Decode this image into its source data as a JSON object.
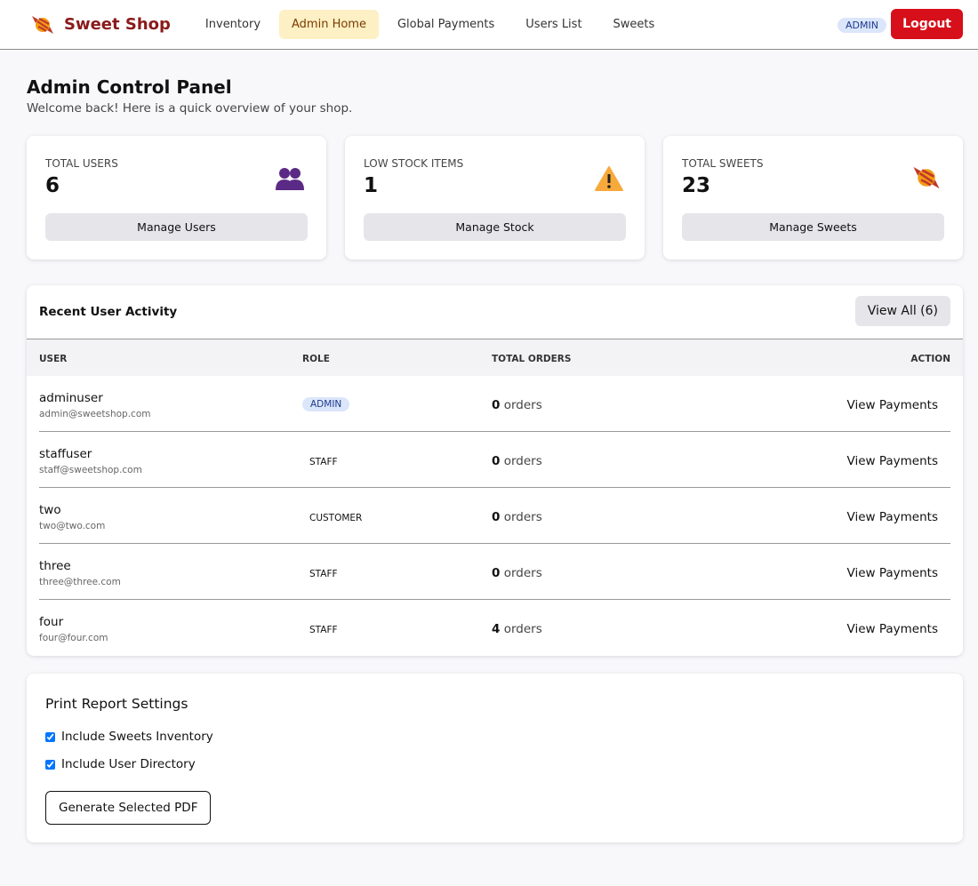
{
  "nav": {
    "brand": "Sweet Shop",
    "links": [
      "Inventory",
      "Admin Home",
      "Global Payments",
      "Users List",
      "Sweets"
    ],
    "role_badge": "ADMIN",
    "logout": "Logout"
  },
  "header": {
    "title": "Admin Control Panel",
    "subtitle": "Welcome back! Here is a quick overview of your shop."
  },
  "stats": [
    {
      "label": "TOTAL USERS",
      "value": 6,
      "button": "Manage Users"
    },
    {
      "label": "LOW STOCK ITEMS",
      "value": 1,
      "button": "Manage Stock"
    },
    {
      "label": "TOTAL SWEETS",
      "value": 23,
      "button": "Manage Sweets"
    }
  ],
  "activity": {
    "title": "Recent User Activity",
    "view_all": "View All (6)",
    "columns": [
      "USER",
      "ROLE",
      "TOTAL ORDERS",
      "ACTION"
    ],
    "orders_unit": "orders",
    "action_label": "View Payments",
    "rows": [
      {
        "name": "adminuser",
        "email": "admin@sweetshop.com",
        "role": "ADMIN",
        "orders": 0
      },
      {
        "name": "staffuser",
        "email": "staff@sweetshop.com",
        "role": "STAFF",
        "orders": 0
      },
      {
        "name": "two",
        "email": "two@two.com",
        "role": "CUSTOMER",
        "orders": 0
      },
      {
        "name": "three",
        "email": "three@three.com",
        "role": "STAFF",
        "orders": 0
      },
      {
        "name": "four",
        "email": "four@four.com",
        "role": "STAFF",
        "orders": 4
      }
    ]
  },
  "report": {
    "title": "Print Report Settings",
    "options": [
      "Include Sweets Inventory",
      "Include User Directory"
    ],
    "button": "Generate Selected PDF"
  }
}
